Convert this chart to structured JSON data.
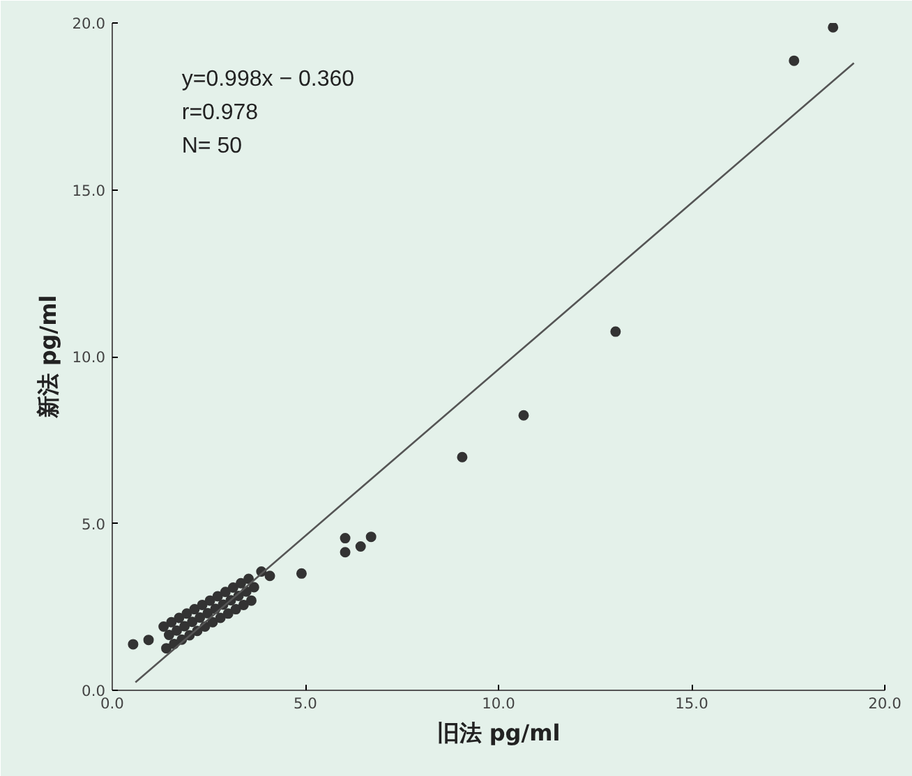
{
  "chart_data": {
    "type": "scatter",
    "xlabel": "旧法 pg/ml",
    "ylabel": "新法 pg/ml",
    "xlim": [
      0,
      20
    ],
    "ylim": [
      0,
      20
    ],
    "xticks": [
      {
        "value": 0,
        "label": "0.0"
      },
      {
        "value": 5,
        "label": "5.0"
      },
      {
        "value": 10,
        "label": "10.0"
      },
      {
        "value": 15,
        "label": "15.0"
      },
      {
        "value": 20,
        "label": "20.0"
      }
    ],
    "yticks": [
      {
        "value": 0,
        "label": "0.0"
      },
      {
        "value": 5,
        "label": "5.0"
      },
      {
        "value": 10,
        "label": "10.0"
      },
      {
        "value": 15,
        "label": "15.0"
      },
      {
        "value": 20,
        "label": "20.0"
      }
    ],
    "grid": false,
    "annotations": [
      "y=0.998x  −  0.360",
      "r=0.978",
      "N=  50"
    ],
    "series": [
      {
        "color": "#333333",
        "marker": "circle",
        "x": [
          0.54,
          0.94,
          1.4,
          1.6,
          1.8,
          2.0,
          2.2,
          2.4,
          2.6,
          2.8,
          3.0,
          3.2,
          3.4,
          3.6,
          1.47,
          1.67,
          1.87,
          2.07,
          2.27,
          2.47,
          2.67,
          2.87,
          3.07,
          3.27,
          3.47,
          3.67,
          1.33,
          1.53,
          1.73,
          1.93,
          2.13,
          2.33,
          2.53,
          2.73,
          2.93,
          3.13,
          3.33,
          3.53,
          3.86,
          4.08,
          4.9,
          6.03,
          6.03,
          6.43,
          6.7,
          9.06,
          10.65,
          13.03,
          17.65,
          18.66
        ],
        "values": [
          1.38,
          1.51,
          1.26,
          1.39,
          1.52,
          1.65,
          1.78,
          1.91,
          2.04,
          2.17,
          2.3,
          2.43,
          2.56,
          2.69,
          1.66,
          1.79,
          1.92,
          2.05,
          2.18,
          2.31,
          2.44,
          2.57,
          2.7,
          2.83,
          2.96,
          3.09,
          1.91,
          2.04,
          2.17,
          2.3,
          2.43,
          2.56,
          2.69,
          2.82,
          2.95,
          3.08,
          3.21,
          3.34,
          3.56,
          3.43,
          3.5,
          4.56,
          4.14,
          4.31,
          4.6,
          6.99,
          8.24,
          10.75,
          18.87,
          19.87
        ]
      },
      {
        "type": "line",
        "color": "#555555",
        "x": [
          0.6,
          19.2
        ],
        "values": [
          0.24,
          18.8
        ]
      }
    ]
  }
}
